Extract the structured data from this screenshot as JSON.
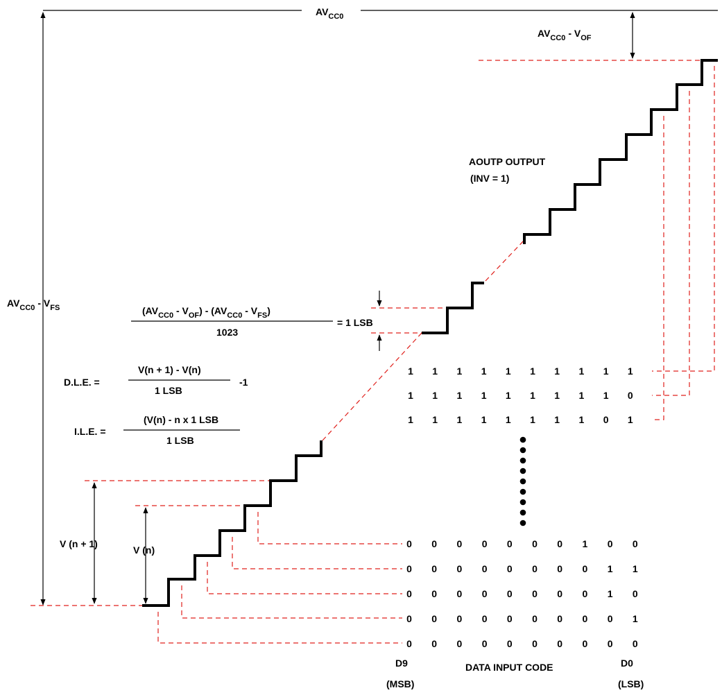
{
  "labels": {
    "avcc0_top": {
      "main": "AV",
      "sub": "CC0"
    },
    "avcc0_vof": {
      "p1": "AV",
      "s1": "CC0",
      "p2": " - V",
      "s2": "OF"
    },
    "avcc0_vfs": {
      "p1": "AV",
      "s1": "CC0",
      "p2": " - V",
      "s2": "FS"
    },
    "aoutp_line1": "AOUTP OUTPUT",
    "aoutp_line2": "(INV = 1)",
    "lsb_formula": {
      "num_p1": "(AV",
      "num_s1": "CC0",
      "num_p2": " - V",
      "num_s2": "OF",
      "num_p3": ") - (AV",
      "num_s3": "CC0",
      "num_p4": " - V",
      "num_s4": "FS",
      "num_p5": ")",
      "den": "1023",
      "result": "= 1 LSB"
    },
    "dle": {
      "lhs": "D.L.E. =",
      "num": "V(n + 1) - V(n)",
      "den": "1 LSB",
      "tail": "-1"
    },
    "ile": {
      "lhs": "I.L.E. =",
      "num": "(V(n) - n x 1 LSB",
      "den": "1 LSB"
    },
    "v_n_plus_1": "V (n + 1)",
    "v_n": "V (n)",
    "d9": "D9",
    "msb": "(MSB)",
    "d0": "D0",
    "lsb": "(LSB)",
    "data_input_code": "DATA INPUT CODE"
  },
  "codes_top": [
    [
      "1",
      "1",
      "1",
      "1",
      "1",
      "1",
      "1",
      "1",
      "1",
      "1"
    ],
    [
      "1",
      "1",
      "1",
      "1",
      "1",
      "1",
      "1",
      "1",
      "1",
      "0"
    ],
    [
      "1",
      "1",
      "1",
      "1",
      "1",
      "1",
      "1",
      "1",
      "0",
      "1"
    ]
  ],
  "codes_bottom": [
    [
      "0",
      "0",
      "0",
      "0",
      "0",
      "0",
      "0",
      "1",
      "0",
      "0"
    ],
    [
      "0",
      "0",
      "0",
      "0",
      "0",
      "0",
      "0",
      "0",
      "1",
      "1"
    ],
    [
      "0",
      "0",
      "0",
      "0",
      "0",
      "0",
      "0",
      "0",
      "1",
      "0"
    ],
    [
      "0",
      "0",
      "0",
      "0",
      "0",
      "0",
      "0",
      "0",
      "0",
      "1"
    ],
    [
      "0",
      "0",
      "0",
      "0",
      "0",
      "0",
      "0",
      "0",
      "0",
      "0"
    ]
  ],
  "colors": {
    "reference_lines": "#e0201c",
    "staircase": "#000000"
  }
}
